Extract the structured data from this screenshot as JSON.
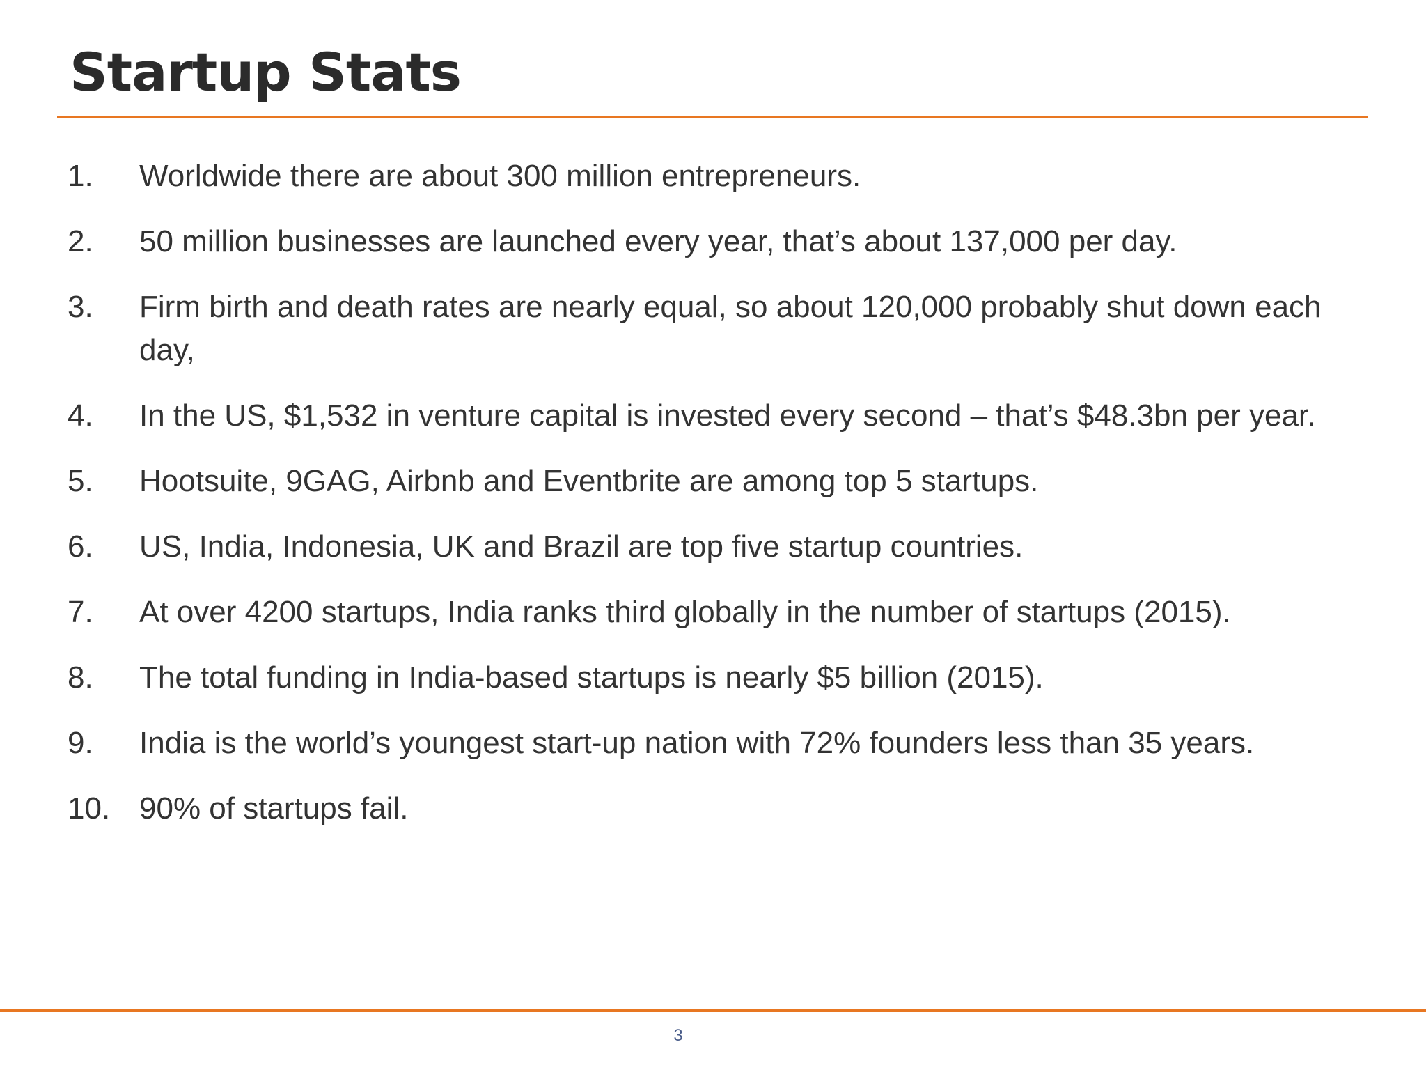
{
  "slide": {
    "title": "Startup Stats",
    "page_number": "3",
    "accent_color": "#e87722",
    "items": [
      {
        "number": "1.",
        "text": "Worldwide there are about 300 million entrepreneurs."
      },
      {
        "number": "2.",
        "text": "50 million businesses are launched every year, that’s about 137,000 per day."
      },
      {
        "number": "3.",
        "text": "Firm birth and death rates are nearly equal, so about 120,000 probably shut down each day,"
      },
      {
        "number": "4.",
        "text": "In the US, $1,532 in venture capital is invested every second – that’s $48.3bn per year."
      },
      {
        "number": "5.",
        "text": "Hootsuite, 9GAG, Airbnb and Eventbrite are among top 5 startups."
      },
      {
        "number": "6.",
        "text": "US, India, Indonesia, UK and Brazil are top five startup countries."
      },
      {
        "number": "7.",
        "text": "At over 4200 startups, India ranks third globally in the number of startups (2015)."
      },
      {
        "number": "8.",
        "text": "The total funding in India-based startups is nearly $5 billion (2015)."
      },
      {
        "number": "9.",
        "text": "India is the world’s youngest start-up nation with 72% founders less than 35 years."
      },
      {
        "number": "10.",
        "text": "90% of startups fail."
      }
    ]
  }
}
